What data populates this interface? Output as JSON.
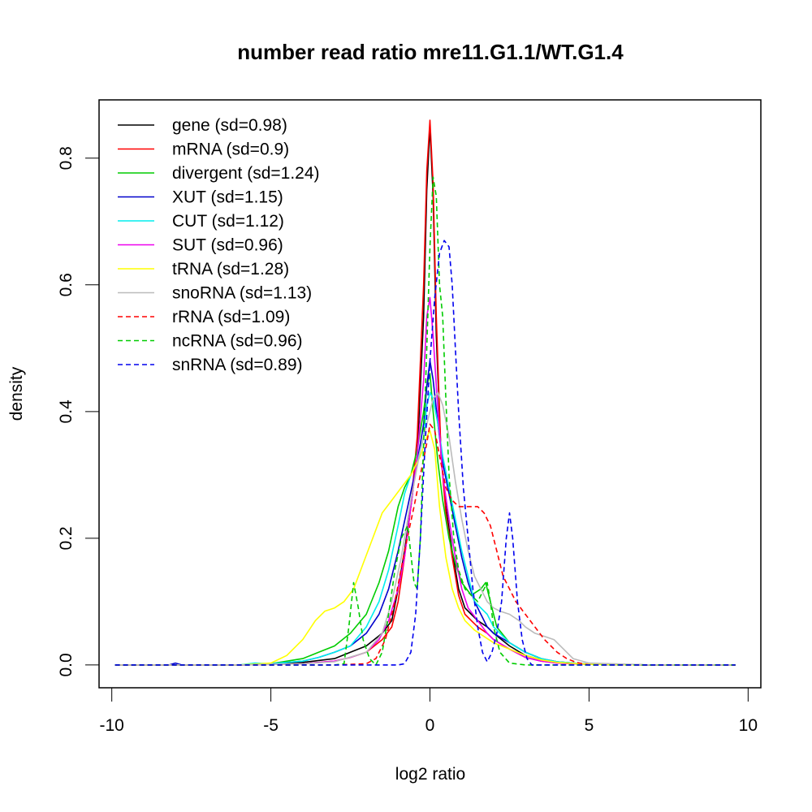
{
  "chart_data": {
    "type": "line",
    "title": "number read ratio mre11.G1.1/WT.G1.4",
    "xlabel": "log2 ratio",
    "ylabel": "density",
    "xlim": [
      -10.4,
      10.4
    ],
    "ylim": [
      -0.036,
      0.892
    ],
    "xticks": [
      -10,
      -5,
      0,
      5,
      10
    ],
    "xtick_labels": [
      "-10",
      "-5",
      "0",
      "5",
      "10"
    ],
    "yticks": [
      0.0,
      0.2,
      0.4,
      0.6,
      0.8
    ],
    "ytick_labels": [
      "0.0",
      "0.2",
      "0.4",
      "0.6",
      "0.8"
    ],
    "legend_position": "top-left",
    "series": [
      {
        "name": "gene (sd=0.98)",
        "color": "#000000",
        "dash": "solid",
        "x": [
          -9.9,
          -6,
          -4,
          -3,
          -2.5,
          -2,
          -1.5,
          -1.2,
          -1,
          -0.8,
          -0.6,
          -0.4,
          -0.2,
          -0.1,
          0,
          0.1,
          0.2,
          0.35,
          0.5,
          0.7,
          0.9,
          1.1,
          1.3,
          1.5,
          1.8,
          2,
          2.5,
          3,
          3.5,
          4,
          5,
          7,
          9.6
        ],
        "y": [
          0,
          0,
          0.004,
          0.01,
          0.02,
          0.03,
          0.05,
          0.07,
          0.12,
          0.18,
          0.25,
          0.33,
          0.55,
          0.75,
          0.85,
          0.74,
          0.52,
          0.33,
          0.25,
          0.18,
          0.12,
          0.09,
          0.08,
          0.07,
          0.06,
          0.05,
          0.03,
          0.015,
          0.008,
          0.004,
          0.001,
          0,
          0
        ]
      },
      {
        "name": "mRNA (sd=0.9)",
        "color": "#ff0000",
        "dash": "solid",
        "x": [
          -9.9,
          -6,
          -4,
          -3,
          -2.5,
          -2,
          -1.5,
          -1.2,
          -1,
          -0.8,
          -0.6,
          -0.4,
          -0.2,
          -0.1,
          0,
          0.1,
          0.2,
          0.35,
          0.5,
          0.7,
          0.9,
          1.1,
          1.3,
          1.5,
          1.8,
          2,
          2.5,
          3,
          3.5,
          4,
          5,
          7,
          9.6
        ],
        "y": [
          0,
          0,
          0.002,
          0.006,
          0.012,
          0.02,
          0.04,
          0.06,
          0.1,
          0.17,
          0.25,
          0.36,
          0.6,
          0.78,
          0.86,
          0.76,
          0.55,
          0.33,
          0.24,
          0.17,
          0.11,
          0.08,
          0.07,
          0.06,
          0.05,
          0.04,
          0.025,
          0.012,
          0.006,
          0.003,
          0.001,
          0,
          0
        ]
      },
      {
        "name": "divergent (sd=1.24)",
        "color": "#00cc00",
        "dash": "solid",
        "x": [
          -9.9,
          -6,
          -5,
          -4,
          -3.5,
          -3,
          -2.5,
          -2,
          -1.6,
          -1.3,
          -1,
          -0.8,
          -0.6,
          -0.4,
          -0.2,
          -0.1,
          0,
          0.1,
          0.25,
          0.4,
          0.6,
          0.8,
          1,
          1.3,
          1.6,
          1.75,
          1.9,
          2.1,
          2.5,
          3,
          3.5,
          4,
          5,
          7,
          9.6
        ],
        "y": [
          0,
          0,
          0.002,
          0.01,
          0.02,
          0.03,
          0.05,
          0.08,
          0.13,
          0.18,
          0.25,
          0.28,
          0.3,
          0.34,
          0.4,
          0.44,
          0.46,
          0.4,
          0.32,
          0.26,
          0.2,
          0.16,
          0.13,
          0.11,
          0.12,
          0.13,
          0.1,
          0.06,
          0.035,
          0.02,
          0.01,
          0.005,
          0.001,
          0,
          0
        ]
      },
      {
        "name": "XUT (sd=1.15)",
        "color": "#0000cc",
        "dash": "solid",
        "x": [
          -9.9,
          -8.2,
          -8,
          -7.8,
          -6,
          -5,
          -4,
          -3.5,
          -3,
          -2.5,
          -2,
          -1.6,
          -1.3,
          -1,
          -0.7,
          -0.4,
          -0.2,
          -0.1,
          0,
          0.1,
          0.25,
          0.4,
          0.6,
          0.8,
          1,
          1.2,
          1.4,
          1.6,
          1.8,
          2,
          2.5,
          3,
          3.5,
          4,
          5,
          7,
          9.6
        ],
        "y": [
          0,
          0,
          0.003,
          0,
          0,
          0.002,
          0.006,
          0.012,
          0.02,
          0.03,
          0.05,
          0.08,
          0.12,
          0.18,
          0.25,
          0.32,
          0.38,
          0.44,
          0.48,
          0.45,
          0.38,
          0.32,
          0.27,
          0.22,
          0.17,
          0.13,
          0.1,
          0.08,
          0.06,
          0.05,
          0.035,
          0.02,
          0.01,
          0.005,
          0.001,
          0,
          0
        ]
      },
      {
        "name": "CUT (sd=1.12)",
        "color": "#00eeee",
        "dash": "solid",
        "x": [
          -9.9,
          -6,
          -5.5,
          -5,
          -4,
          -3.5,
          -3,
          -2.5,
          -2,
          -1.6,
          -1.3,
          -1,
          -0.8,
          -0.6,
          -0.4,
          -0.2,
          -0.1,
          0,
          0.1,
          0.25,
          0.4,
          0.6,
          0.8,
          1,
          1.2,
          1.4,
          1.6,
          1.8,
          2,
          2.5,
          3,
          3.5,
          4,
          5,
          7,
          9.6
        ],
        "y": [
          0,
          0,
          0.003,
          0.002,
          0.006,
          0.012,
          0.02,
          0.03,
          0.06,
          0.1,
          0.15,
          0.22,
          0.27,
          0.3,
          0.32,
          0.36,
          0.41,
          0.43,
          0.42,
          0.38,
          0.33,
          0.28,
          0.23,
          0.18,
          0.14,
          0.1,
          0.09,
          0.08,
          0.06,
          0.035,
          0.02,
          0.01,
          0.005,
          0.001,
          0,
          0
        ]
      },
      {
        "name": "SUT (sd=0.96)",
        "color": "#ee00ee",
        "dash": "solid",
        "x": [
          -9.9,
          -6,
          -4,
          -3,
          -2.5,
          -2,
          -1.6,
          -1.3,
          -1,
          -0.8,
          -0.6,
          -0.4,
          -0.2,
          -0.1,
          0,
          0.1,
          0.25,
          0.4,
          0.6,
          0.8,
          1,
          1.2,
          1.5,
          1.8,
          2,
          2.5,
          3,
          3.5,
          4,
          5,
          7,
          9.6
        ],
        "y": [
          0,
          0,
          0.002,
          0.006,
          0.012,
          0.02,
          0.04,
          0.07,
          0.12,
          0.17,
          0.25,
          0.33,
          0.45,
          0.55,
          0.58,
          0.52,
          0.4,
          0.3,
          0.23,
          0.17,
          0.12,
          0.09,
          0.07,
          0.05,
          0.04,
          0.025,
          0.012,
          0.006,
          0.003,
          0.001,
          0,
          0
        ]
      },
      {
        "name": "tRNA (sd=1.28)",
        "color": "#ffff00",
        "dash": "solid",
        "x": [
          -9.9,
          -6,
          -5,
          -4.5,
          -4,
          -3.6,
          -3.3,
          -3,
          -2.7,
          -2.4,
          -2.1,
          -1.8,
          -1.5,
          -1.2,
          -0.9,
          -0.6,
          -0.3,
          -0.1,
          0,
          0.15,
          0.3,
          0.5,
          0.7,
          0.9,
          1.1,
          1.4,
          1.7,
          2,
          2.5,
          3,
          3.5,
          4,
          5,
          7,
          9.6
        ],
        "y": [
          0,
          0,
          0.003,
          0.015,
          0.04,
          0.07,
          0.085,
          0.09,
          0.1,
          0.12,
          0.16,
          0.2,
          0.24,
          0.26,
          0.28,
          0.3,
          0.33,
          0.36,
          0.37,
          0.34,
          0.25,
          0.17,
          0.12,
          0.09,
          0.07,
          0.055,
          0.045,
          0.035,
          0.025,
          0.015,
          0.008,
          0.004,
          0.001,
          0,
          0
        ]
      },
      {
        "name": "snoRNA (sd=1.13)",
        "color": "#bbbbbb",
        "dash": "solid",
        "x": [
          -9.9,
          -6,
          -4,
          -3,
          -2,
          -1.5,
          -1.2,
          -0.9,
          -0.6,
          -0.3,
          -0.1,
          0,
          0.1,
          0.25,
          0.4,
          0.6,
          0.8,
          1,
          1.2,
          1.4,
          1.6,
          1.8,
          2,
          2.2,
          2.5,
          2.8,
          3,
          3.3,
          3.6,
          3.9,
          4.2,
          4.5,
          5,
          7,
          9.6
        ],
        "y": [
          0,
          0,
          0.002,
          0.005,
          0.02,
          0.05,
          0.1,
          0.17,
          0.26,
          0.34,
          0.38,
          0.4,
          0.42,
          0.43,
          0.41,
          0.36,
          0.29,
          0.23,
          0.18,
          0.14,
          0.12,
          0.1,
          0.09,
          0.085,
          0.08,
          0.07,
          0.06,
          0.05,
          0.045,
          0.04,
          0.025,
          0.01,
          0.003,
          0,
          0
        ]
      },
      {
        "name": "rRNA (sd=1.09)",
        "color": "#ff0000",
        "dash": "dashed",
        "x": [
          -9.9,
          -3,
          -2,
          -1.7,
          -1.4,
          -1.1,
          -0.8,
          -0.5,
          -0.3,
          -0.1,
          0,
          0.15,
          0.3,
          0.5,
          0.7,
          0.9,
          1.1,
          1.3,
          1.5,
          1.7,
          1.9,
          2.1,
          2.3,
          2.5,
          2.7,
          3,
          3.3,
          3.6,
          4,
          4.3,
          4.6,
          5,
          9.6
        ],
        "y": [
          0,
          0,
          0.002,
          0.01,
          0.04,
          0.1,
          0.18,
          0.25,
          0.3,
          0.35,
          0.38,
          0.37,
          0.33,
          0.28,
          0.26,
          0.25,
          0.25,
          0.25,
          0.25,
          0.24,
          0.22,
          0.18,
          0.14,
          0.12,
          0.1,
          0.08,
          0.06,
          0.04,
          0.02,
          0.01,
          0.004,
          0,
          0
        ]
      },
      {
        "name": "ncRNA (sd=0.96)",
        "color": "#00cc00",
        "dash": "dashed",
        "x": [
          -9.9,
          -3,
          -2.7,
          -2.55,
          -2.4,
          -2.25,
          -2.1,
          -1.9,
          -1.7,
          -1.5,
          -1.3,
          -1.1,
          -0.9,
          -0.7,
          -0.5,
          -0.4,
          -0.3,
          -0.2,
          -0.1,
          0,
          0.1,
          0.2,
          0.3,
          0.4,
          0.5,
          0.6,
          0.75,
          0.9,
          1.1,
          1.3,
          1.5,
          1.7,
          1.8,
          1.9,
          2,
          2.2,
          2.5,
          3,
          9.6
        ],
        "y": [
          0,
          0,
          0.002,
          0.06,
          0.13,
          0.09,
          0.04,
          0.01,
          0,
          0.02,
          0.08,
          0.15,
          0.2,
          0.22,
          0.13,
          0.12,
          0.2,
          0.35,
          0.5,
          0.66,
          0.77,
          0.74,
          0.6,
          0.55,
          0.42,
          0.3,
          0.2,
          0.15,
          0.12,
          0.11,
          0.1,
          0.12,
          0.13,
          0.1,
          0.06,
          0.02,
          0.003,
          0,
          0
        ]
      },
      {
        "name": "snRNA (sd=0.89)",
        "color": "#0000ee",
        "dash": "dashed",
        "x": [
          -9.9,
          -1,
          -0.8,
          -0.6,
          -0.45,
          -0.3,
          -0.15,
          0,
          0.15,
          0.3,
          0.45,
          0.6,
          0.7,
          0.8,
          0.9,
          1.05,
          1.2,
          1.35,
          1.5,
          1.65,
          1.8,
          1.95,
          2.1,
          2.25,
          2.4,
          2.5,
          2.6,
          2.75,
          2.9,
          3.05,
          3.2,
          9.6
        ],
        "y": [
          0,
          0,
          0.002,
          0.02,
          0.08,
          0.2,
          0.35,
          0.48,
          0.58,
          0.65,
          0.67,
          0.66,
          0.6,
          0.5,
          0.4,
          0.28,
          0.2,
          0.12,
          0.06,
          0.02,
          0.005,
          0.02,
          0.05,
          0.1,
          0.2,
          0.24,
          0.2,
          0.1,
          0.04,
          0.01,
          0,
          0
        ]
      }
    ]
  }
}
